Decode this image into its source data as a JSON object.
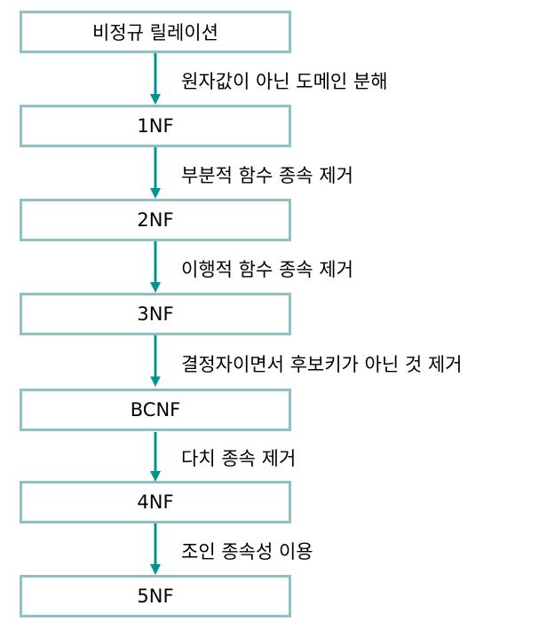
{
  "colors": {
    "box_border": "#8fc1c3",
    "arrow": "#00938f"
  },
  "steps": [
    {
      "label": "비정규 릴레이션"
    },
    {
      "label": "1NF"
    },
    {
      "label": "2NF"
    },
    {
      "label": "3NF"
    },
    {
      "label": "BCNF"
    },
    {
      "label": "4NF"
    },
    {
      "label": "5NF"
    }
  ],
  "transitions": [
    {
      "label": "원자값이 아닌 도메인 분해"
    },
    {
      "label": "부분적 함수 종속 제거"
    },
    {
      "label": "이행적 함수 종속 제거"
    },
    {
      "label": "결정자이면서 후보키가 아닌 것 제거"
    },
    {
      "label": "다치 종속 제거"
    },
    {
      "label": "조인 종속성 이용"
    }
  ]
}
